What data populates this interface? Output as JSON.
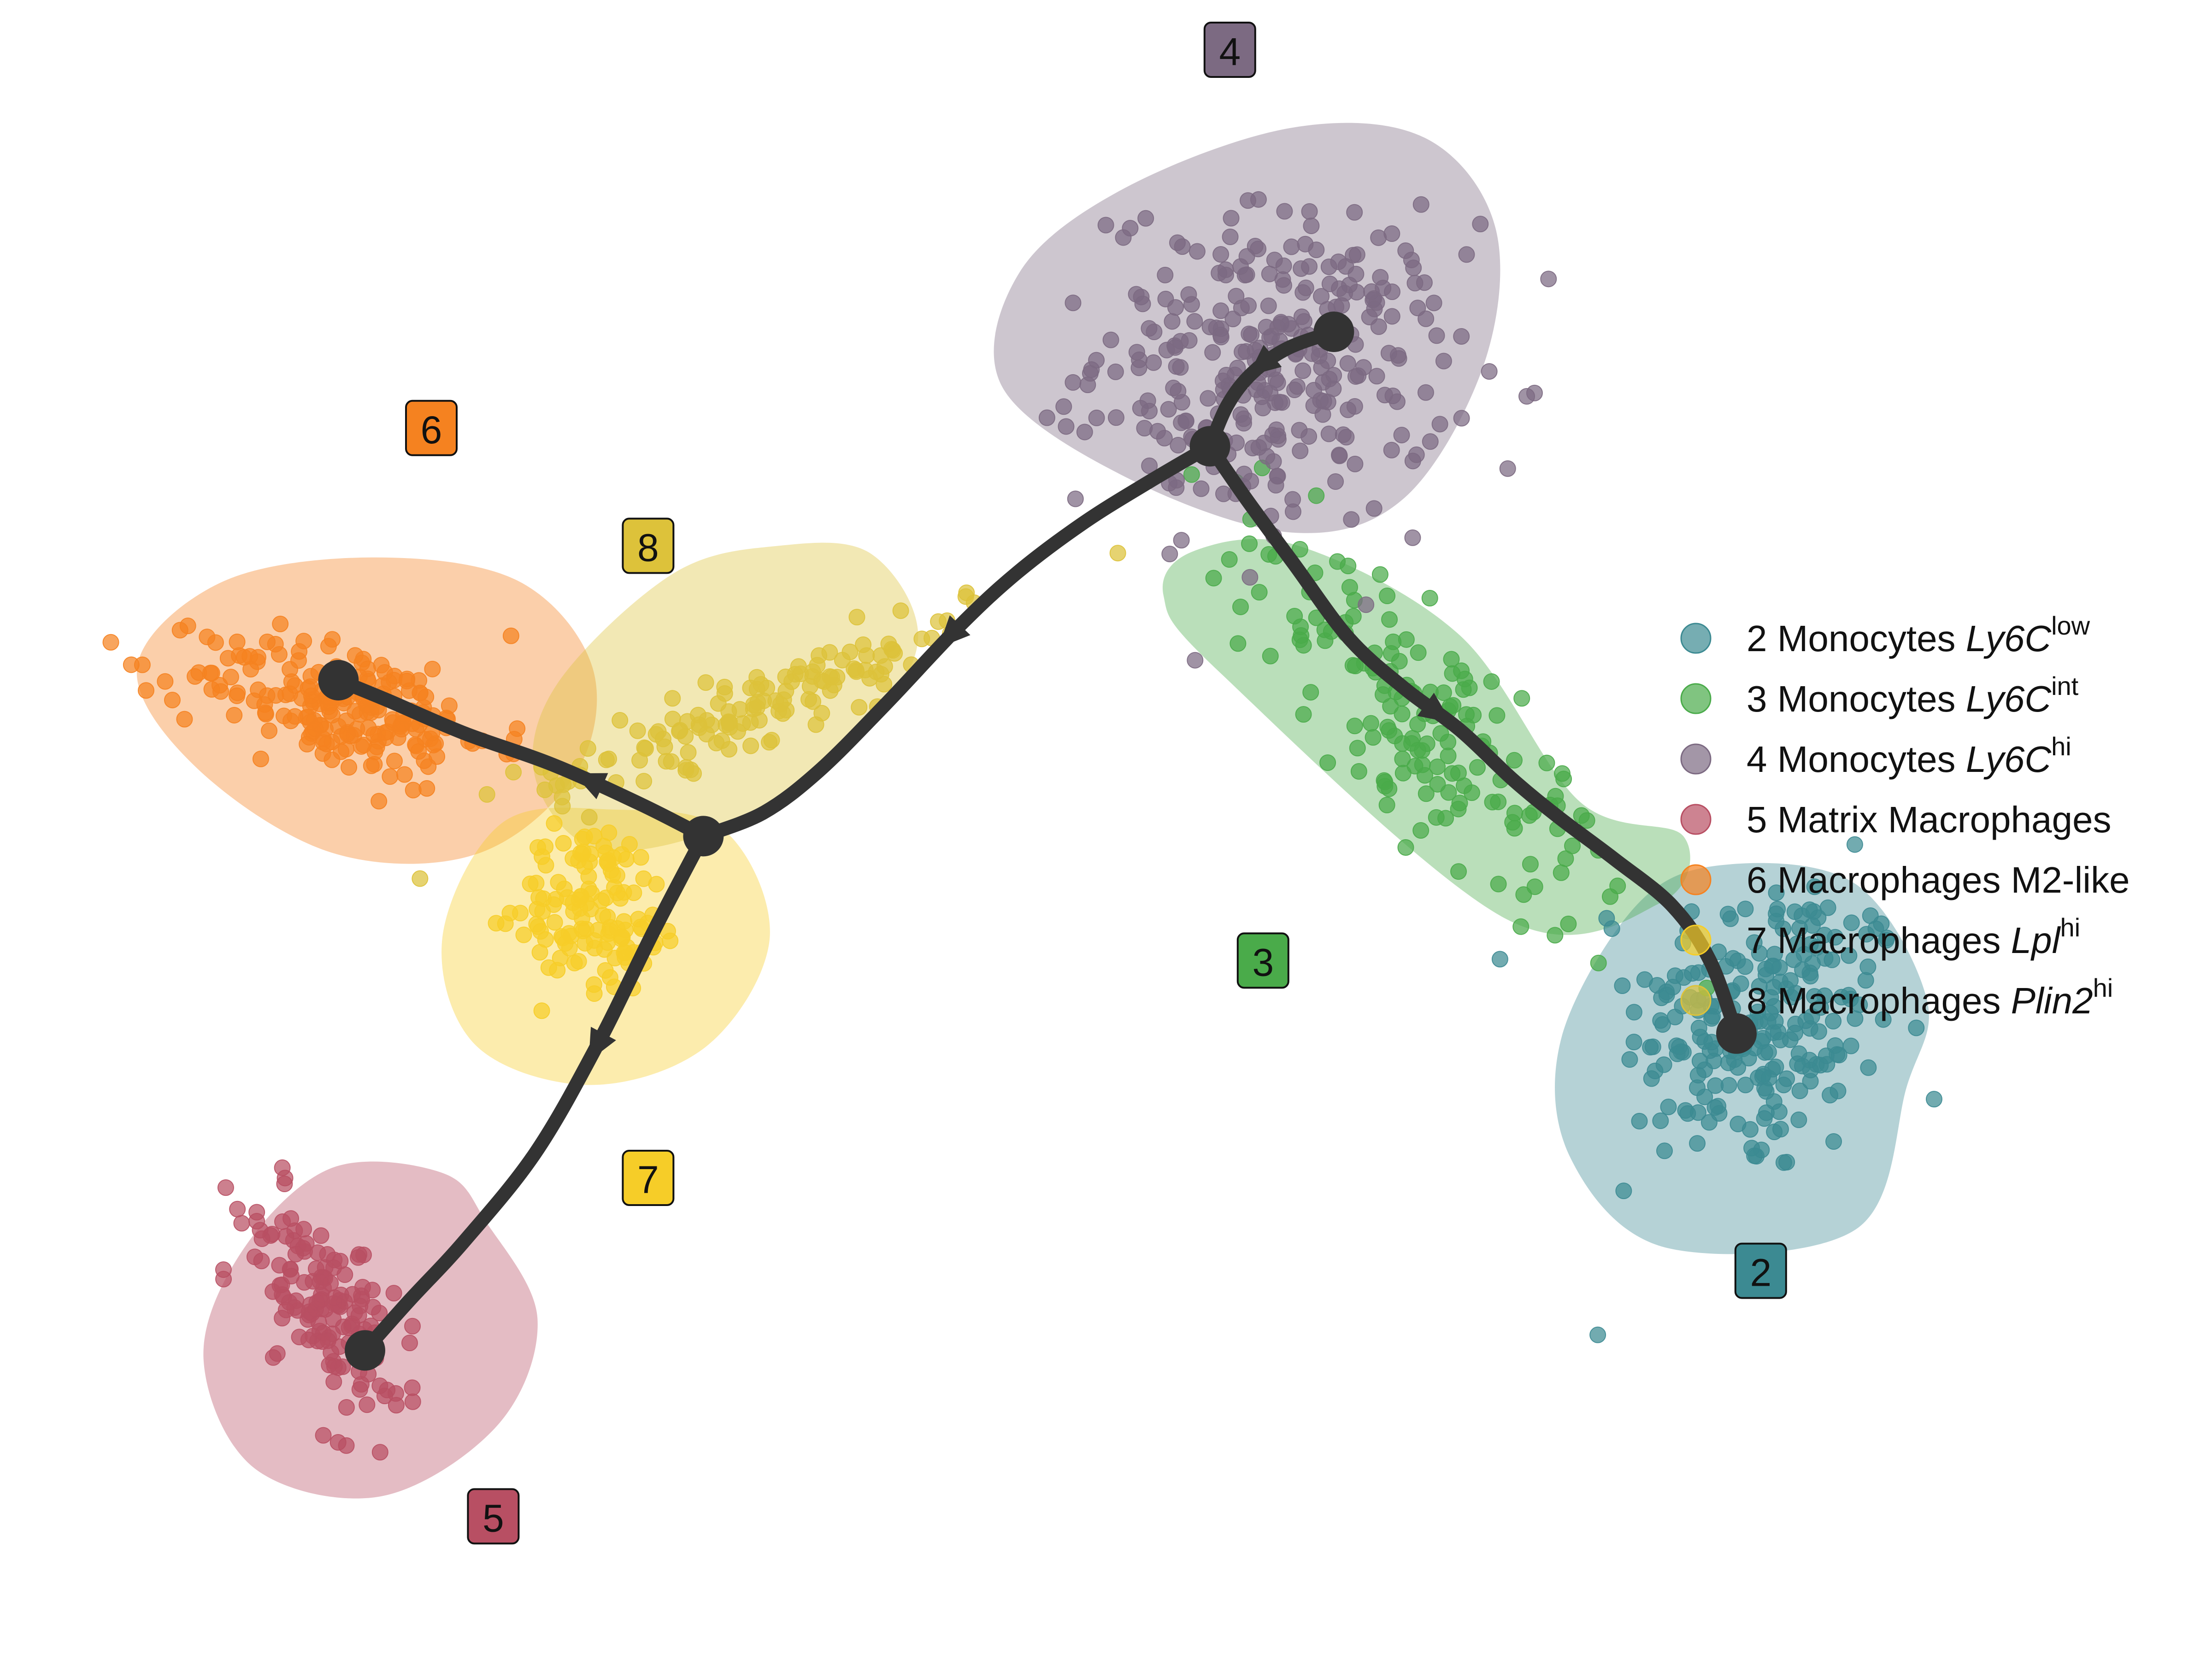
{
  "chart_data": {
    "type": "scatter",
    "title": "",
    "xlabel": "",
    "ylabel": "",
    "grid": false,
    "legend_position": "right",
    "xlim": [
      0,
      100
    ],
    "ylim": [
      0,
      100
    ],
    "clusters": [
      {
        "id": "2",
        "badge": "2",
        "label_prefix": "2 Monocytes",
        "label_italic": "Ly6C",
        "label_sup": "low",
        "color": "#3c8a92",
        "center": [
          79.6,
          38.3
        ],
        "spread": [
          5.5,
          8.5
        ],
        "tilt": -8,
        "n": 230,
        "hull": [
          [
            86.2,
            34.5
          ],
          [
            83.9,
            25.9
          ],
          [
            75.3,
            24.8
          ],
          [
            71.0,
            30.2
          ],
          [
            70.6,
            37.5
          ],
          [
            74.1,
            45.6
          ],
          [
            78.2,
            47.9
          ],
          [
            83.9,
            46.7
          ],
          [
            87.1,
            39.8
          ]
        ]
      },
      {
        "id": "3",
        "badge": "3",
        "label_prefix": "3 Monocytes",
        "label_italic": "Ly6C",
        "label_sup": "int",
        "color": "#4aab4a",
        "center": [
          64.2,
          56.5
        ],
        "spread": [
          3.5,
          13.0
        ],
        "tilt": 34,
        "n": 160,
        "hull": [
          [
            71.4,
            51.7
          ],
          [
            76.1,
            49.6
          ],
          [
            75.1,
            45.6
          ],
          [
            68.1,
            44.6
          ],
          [
            55.2,
            59.4
          ],
          [
            52.6,
            64.1
          ],
          [
            54.0,
            66.8
          ],
          [
            58.7,
            67.1
          ],
          [
            66.0,
            61.7
          ]
        ]
      },
      {
        "id": "4",
        "badge": "4",
        "label_prefix": "4 Monocytes",
        "label_italic": "Ly6C",
        "label_sup": "hi",
        "color": "#7c6a82",
        "center": [
          57.6,
          78.0
        ],
        "spread": [
          7.2,
          8.5
        ],
        "tilt": -5,
        "n": 300,
        "hull": [
          [
            64.4,
            91.7
          ],
          [
            67.6,
            86.3
          ],
          [
            67.1,
            78.1
          ],
          [
            63.5,
            70.0
          ],
          [
            58.4,
            67.9
          ],
          [
            51.1,
            71.1
          ],
          [
            45.3,
            76.7
          ],
          [
            46.1,
            83.6
          ],
          [
            50.9,
            88.7
          ],
          [
            58.4,
            92.3
          ]
        ]
      },
      {
        "id": "5",
        "badge": "5",
        "label_prefix": "5 Matrix Macrophages",
        "label_italic": "",
        "label_sup": "",
        "color": "#b84f63",
        "center": [
          14.8,
          21.0
        ],
        "spread": [
          2.6,
          6.5
        ],
        "tilt": 22,
        "n": 150,
        "hull": [
          [
            22.0,
            26.3
          ],
          [
            24.3,
            20.5
          ],
          [
            22.5,
            14.1
          ],
          [
            17.2,
            9.8
          ],
          [
            11.5,
            11.5
          ],
          [
            9.2,
            18.1
          ],
          [
            11.0,
            24.7
          ],
          [
            15.0,
            29.6
          ],
          [
            20.0,
            29.3
          ]
        ]
      },
      {
        "id": "6",
        "badge": "6",
        "label_prefix": "6 Macrophages M2-like",
        "label_italic": "",
        "label_sup": "",
        "color": "#f58220",
        "center": [
          15.5,
          57.4
        ],
        "spread": [
          6.5,
          3.4
        ],
        "tilt": -18,
        "n": 210,
        "hull": [
          [
            23.4,
            65.0
          ],
          [
            26.8,
            59.7
          ],
          [
            26.0,
            53.3
          ],
          [
            21.5,
            48.5
          ],
          [
            15.0,
            48.6
          ],
          [
            8.9,
            53.7
          ],
          [
            6.2,
            59.8
          ],
          [
            10.0,
            64.9
          ],
          [
            16.8,
            66.4
          ]
        ]
      },
      {
        "id": "7",
        "badge": "7",
        "label_prefix": "7 Macrophages",
        "label_italic": "Lpl",
        "label_sup": "hi",
        "color": "#f6cd28",
        "center": [
          27.0,
          45.5
        ],
        "spread": [
          3.2,
          4.5
        ],
        "tilt": 10,
        "n": 130,
        "hull": [
          [
            32.7,
            50.0
          ],
          [
            34.8,
            43.5
          ],
          [
            32.0,
            37.0
          ],
          [
            26.7,
            34.6
          ],
          [
            21.5,
            37.0
          ],
          [
            20.0,
            43.5
          ],
          [
            22.7,
            50.4
          ],
          [
            27.7,
            51.2
          ]
        ]
      },
      {
        "id": "8",
        "badge": "8",
        "label_prefix": "8 Macrophages",
        "label_italic": "Plin2",
        "label_sup": "hi",
        "color": "#ddc23a",
        "center": [
          34.4,
          57.6
        ],
        "spread": [
          10.5,
          1.8
        ],
        "tilt": 28,
        "n": 140,
        "hull": [
          [
            39.4,
            66.6
          ],
          [
            41.5,
            61.4
          ],
          [
            38.7,
            55.3
          ],
          [
            33.2,
            50.4
          ],
          [
            27.1,
            48.8
          ],
          [
            24.2,
            53.1
          ],
          [
            25.2,
            58.8
          ],
          [
            30.4,
            65.4
          ],
          [
            35.2,
            67.1
          ]
        ]
      }
    ],
    "badges": [
      {
        "text": "4",
        "x": 55.6,
        "y": 97.0,
        "color": "#7c6a82",
        "dark": false
      },
      {
        "text": "6",
        "x": 19.5,
        "y": 74.2,
        "color": "#f58220",
        "dark": false
      },
      {
        "text": "8",
        "x": 29.3,
        "y": 67.1,
        "color": "#ddc23a",
        "dark": false
      },
      {
        "text": "3",
        "x": 57.1,
        "y": 42.1,
        "color": "#4aab4a",
        "dark": false
      },
      {
        "text": "7",
        "x": 29.3,
        "y": 29.0,
        "color": "#f6cd28",
        "dark": false
      },
      {
        "text": "2",
        "x": 79.6,
        "y": 23.4,
        "color": "#3c8a92",
        "dark": false
      },
      {
        "text": "5",
        "x": 22.3,
        "y": 8.6,
        "color": "#b84f63",
        "dark": false
      }
    ],
    "trajectory": {
      "nodes": [
        {
          "id": "n4",
          "x": 60.3,
          "y": 80.0
        },
        {
          "id": "b1",
          "x": 54.7,
          "y": 73.1
        },
        {
          "id": "n2",
          "x": 78.5,
          "y": 37.7
        },
        {
          "id": "b2",
          "x": 31.8,
          "y": 49.6
        },
        {
          "id": "n6",
          "x": 15.3,
          "y": 59.0
        },
        {
          "id": "n5",
          "x": 16.5,
          "y": 18.6
        }
      ],
      "edges": [
        {
          "path": [
            [
              60.3,
              80.0
            ],
            [
              58.2,
              79.0
            ],
            [
              56.6,
              77.5
            ],
            [
              55.5,
              75.6
            ],
            [
              54.7,
              73.1
            ]
          ],
          "arrow_at": 0.45
        },
        {
          "path": [
            [
              54.7,
              73.1
            ],
            [
              56.3,
              70.0
            ],
            [
              58.5,
              66.0
            ],
            [
              61.0,
              61.5
            ],
            [
              63.5,
              58.5
            ],
            [
              66.0,
              56.0
            ],
            [
              68.4,
              53.0
            ],
            [
              70.5,
              50.7
            ],
            [
              73.0,
              48.2
            ],
            [
              75.6,
              45.4
            ],
            [
              77.3,
              42.1
            ],
            [
              78.5,
              37.7
            ]
          ],
          "arrow_at": 0.44
        },
        {
          "path": [
            [
              54.7,
              73.1
            ],
            [
              52.0,
              71.0
            ],
            [
              49.0,
              68.5
            ],
            [
              46.0,
              65.5
            ],
            [
              43.4,
              62.3
            ],
            [
              40.0,
              57.5
            ],
            [
              37.0,
              53.5
            ],
            [
              34.5,
              51.0
            ],
            [
              31.8,
              49.6
            ]
          ],
          "arrow_at": 0.5
        },
        {
          "path": [
            [
              31.8,
              49.6
            ],
            [
              29.0,
              51.5
            ],
            [
              25.0,
              53.9
            ],
            [
              21.0,
              55.8
            ],
            [
              17.5,
              57.8
            ],
            [
              15.3,
              59.0
            ]
          ],
          "arrow_at": 0.32
        },
        {
          "path": [
            [
              31.8,
              49.6
            ],
            [
              29.6,
              44.0
            ],
            [
              27.0,
              37.0
            ],
            [
              24.2,
              30.5
            ],
            [
              21.0,
              25.2
            ],
            [
              18.5,
              21.6
            ],
            [
              16.5,
              18.6
            ]
          ],
          "arrow_at": 0.38
        }
      ]
    }
  }
}
